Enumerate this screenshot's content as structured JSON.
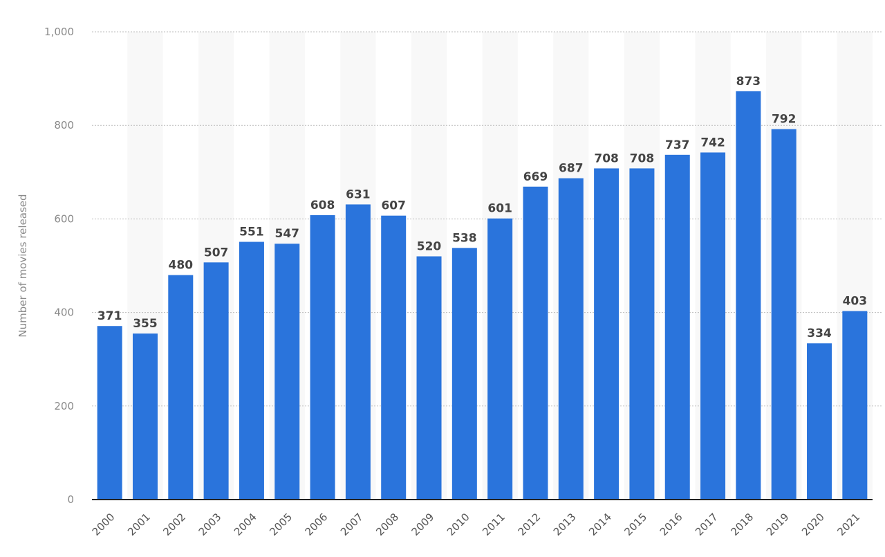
{
  "chart_data": {
    "type": "bar",
    "title": "",
    "xlabel": "",
    "ylabel": "Number of movies released",
    "ylim": [
      0,
      1000
    ],
    "yticks": [
      0,
      200,
      400,
      600,
      800,
      1000
    ],
    "ytick_labels": [
      "0",
      "200",
      "400",
      "600",
      "800",
      "1,000"
    ],
    "grid": true,
    "categories": [
      "2000",
      "2001",
      "2002",
      "2003",
      "2004",
      "2005",
      "2006",
      "2007",
      "2008",
      "2009",
      "2010",
      "2011",
      "2012",
      "2013",
      "2014",
      "2015",
      "2016",
      "2017",
      "2018",
      "2019",
      "2020",
      "2021"
    ],
    "values": [
      371,
      355,
      480,
      507,
      551,
      547,
      608,
      631,
      607,
      520,
      538,
      601,
      669,
      687,
      708,
      708,
      737,
      742,
      873,
      792,
      334,
      403
    ],
    "bar_color": "#2a74dc",
    "stripe_color": "#f8f8f8"
  }
}
